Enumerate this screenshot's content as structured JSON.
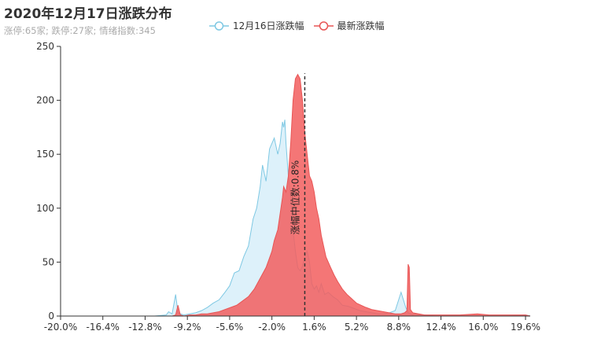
{
  "chart_data": {
    "type": "area",
    "title": "2020年12月17日涨跌分布",
    "subtitle": "涨停:65家; 跌停:27家; 情绪指数:345",
    "xlabel": "",
    "ylabel": "",
    "xlim": [
      -20,
      20
    ],
    "ylim": [
      0,
      250
    ],
    "x_ticks": [
      "-20.0%",
      "-16.4%",
      "-12.8%",
      "-9.2%",
      "-5.6%",
      "-2.0%",
      "1.6%",
      "5.2%",
      "8.8%",
      "12.4%",
      "16.0%",
      "19.6%"
    ],
    "y_ticks": [
      0,
      50,
      100,
      150,
      200,
      250
    ],
    "grid": false,
    "legend_position": "top",
    "median_annotation": {
      "x": 0.8,
      "label": "涨幅中位数:0.8%"
    },
    "series": [
      {
        "name": "12月16日涨跌幅",
        "color": "#7ec8e3",
        "fill": "#ddf1fa",
        "x": [
          -20,
          -12,
          -11,
          -10.8,
          -10.5,
          -10.2,
          -10,
          -9.8,
          -9.5,
          -9,
          -8.5,
          -8,
          -7.5,
          -7,
          -6.5,
          -6,
          -5.6,
          -5.2,
          -4.8,
          -4.4,
          -4,
          -3.6,
          -3.3,
          -3,
          -2.8,
          -2.5,
          -2.2,
          -2.0,
          -1.8,
          -1.5,
          -1.3,
          -1.1,
          -1.0,
          -0.9,
          -0.8,
          -0.6,
          -0.4,
          -0.2,
          0,
          0.2,
          0.4,
          0.6,
          0.8,
          1.0,
          1.2,
          1.4,
          1.6,
          1.8,
          2.0,
          2.2,
          2.5,
          2.8,
          3.2,
          3.6,
          4.0,
          4.5,
          5.0,
          5.5,
          6.0,
          6.5,
          7.0,
          7.5,
          8.0,
          8.5,
          9.0,
          9.4,
          9.6,
          9.8,
          10.0,
          10.2,
          10.5,
          11,
          12,
          14,
          16,
          18,
          19.6,
          20
        ],
        "values": [
          0,
          0,
          1,
          4,
          2,
          20,
          3,
          2,
          1,
          2,
          3,
          5,
          8,
          12,
          15,
          22,
          28,
          40,
          42,
          55,
          65,
          90,
          100,
          120,
          140,
          125,
          155,
          160,
          165,
          150,
          160,
          180,
          175,
          182,
          160,
          130,
          110,
          80,
          60,
          45,
          42,
          46,
          55,
          60,
          50,
          30,
          25,
          28,
          22,
          30,
          20,
          22,
          18,
          15,
          10,
          9,
          7,
          5,
          4,
          3,
          2,
          2,
          3,
          5,
          22,
          8,
          3,
          2,
          1,
          2,
          1,
          1,
          0,
          0,
          0,
          0,
          1,
          0
        ]
      },
      {
        "name": "最新涨跌幅",
        "color": "#e85555",
        "fill": "#f25e5e",
        "x": [
          -20,
          -12,
          -11,
          -10.5,
          -10.2,
          -10.0,
          -9.8,
          -9.5,
          -9,
          -8.5,
          -8,
          -7.5,
          -7,
          -6.5,
          -6,
          -5.5,
          -5,
          -4.5,
          -4,
          -3.5,
          -3,
          -2.5,
          -2,
          -1.8,
          -1.5,
          -1.3,
          -1.1,
          -1.0,
          -0.8,
          -0.6,
          -0.4,
          -0.2,
          0,
          0.2,
          0.4,
          0.6,
          0.8,
          1.0,
          1.2,
          1.4,
          1.6,
          1.8,
          2.0,
          2.2,
          2.4,
          2.6,
          2.8,
          3.0,
          3.3,
          3.6,
          4.0,
          4.4,
          4.8,
          5.2,
          5.6,
          6.0,
          6.5,
          7.0,
          7.5,
          8.0,
          8.5,
          9.0,
          9.3,
          9.5,
          9.6,
          9.7,
          9.8,
          10.0,
          10.5,
          11,
          12,
          14,
          15.5,
          16.5,
          18,
          19.6,
          20
        ],
        "values": [
          0,
          0,
          0,
          0,
          1,
          10,
          1,
          0,
          1,
          1,
          2,
          2,
          3,
          4,
          6,
          8,
          10,
          14,
          18,
          25,
          35,
          45,
          60,
          70,
          80,
          95,
          110,
          120,
          115,
          130,
          160,
          200,
          220,
          224,
          220,
          200,
          170,
          150,
          130,
          125,
          115,
          100,
          90,
          75,
          65,
          55,
          50,
          45,
          38,
          32,
          25,
          20,
          16,
          12,
          10,
          8,
          6,
          5,
          4,
          3,
          2,
          2,
          3,
          5,
          48,
          45,
          6,
          3,
          2,
          1,
          1,
          1,
          2,
          1,
          1,
          1,
          0
        ]
      }
    ]
  }
}
